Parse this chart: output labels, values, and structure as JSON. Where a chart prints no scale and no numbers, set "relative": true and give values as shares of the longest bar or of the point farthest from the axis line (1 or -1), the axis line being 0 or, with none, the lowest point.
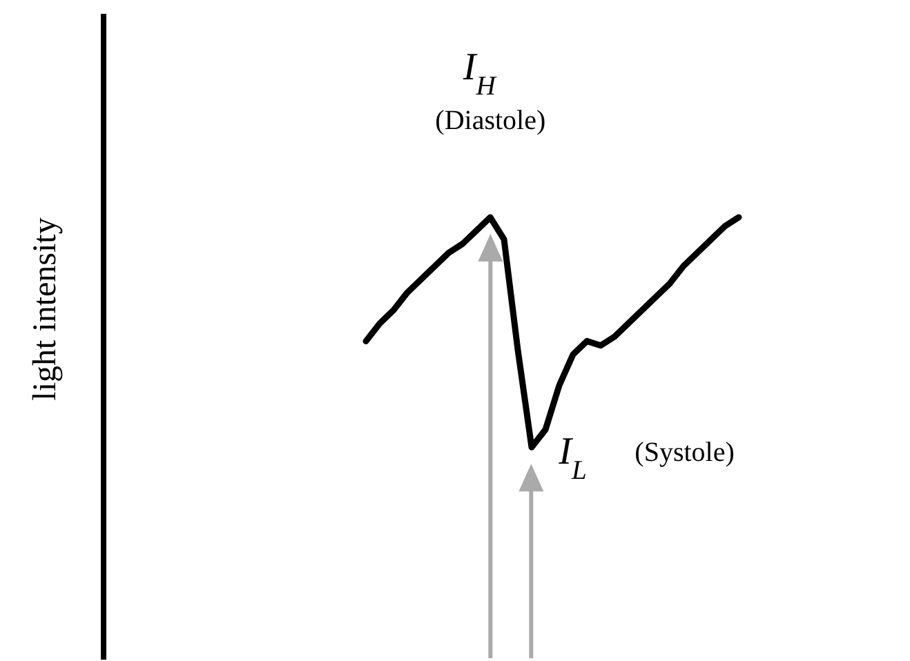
{
  "chart_data": {
    "type": "line",
    "relative": true,
    "ylabel": "light intensity",
    "color": "#000000",
    "annotations": [
      "I$_{H}$",
      "(Diastole)",
      "I$_{L}$",
      "(Systole)"
    ],
    "categories": [
      null,
      null,
      null,
      null,
      null,
      null,
      null,
      null,
      null,
      null,
      null,
      null,
      null,
      null,
      null,
      null,
      null,
      null,
      null,
      null,
      null,
      null,
      null,
      null,
      null,
      null,
      null,
      null,
      null,
      null,
      null,
      null,
      null,
      null,
      null,
      null,
      null,
      null,
      null,
      null,
      null,
      null,
      null,
      null,
      null,
      null,
      null,
      null,
      null,
      null,
      null,
      null,
      null,
      null,
      null,
      null,
      null,
      null,
      null
    ],
    "values": [
      null,
      null,
      null,
      null,
      null,
      null,
      null,
      null,
      null,
      null,
      null,
      null,
      null,
      null,
      null,
      null,
      null,
      null,
      null,
      0.72,
      0.76,
      0.79,
      0.83,
      0.86,
      0.89,
      0.92,
      0.94,
      0.97,
      1,
      0.95,
      0.7,
      0.48,
      0.52,
      0.62,
      0.69,
      0.72,
      0.71,
      0.73,
      0.76,
      0.79,
      0.82,
      0.85,
      0.89,
      0.92,
      0.95,
      0.98,
      1,
      null,
      null,
      null,
      null,
      null,
      null,
      null,
      null,
      null,
      null,
      null,
      null
    ]
  }
}
